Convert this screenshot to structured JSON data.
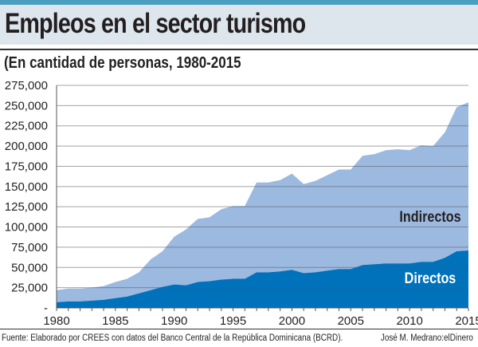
{
  "title": "Empleos en el sector turismo",
  "subtitle": "(En cantidad de personas, 1980-2015",
  "source": "Fuente: Elaborado por CREES con datos del Banco Central de la República Dominicana (BCRD).",
  "credit": "José M. Medrano:elDinero",
  "colors": {
    "accent_bar": "#4a9fc0",
    "title_bg": "#dde6ed",
    "directos": "#0071bb",
    "indirectos": "#9cb9e0"
  },
  "chart_data": {
    "type": "area",
    "stacked": true,
    "title": "Empleos en el sector turismo",
    "subtitle": "(En cantidad de personas, 1980-2015",
    "xlim": [
      1980,
      2015
    ],
    "ylim": [
      0,
      275000
    ],
    "grid": true,
    "x_ticks": [
      "1980",
      "1985",
      "1990",
      "1995",
      "2000",
      "2005",
      "2010",
      "2015"
    ],
    "y_ticks": [
      "-",
      "25,000",
      "50,000",
      "75,000",
      "100,000",
      "125,000",
      "150,000",
      "175,000",
      "200,000",
      "225,000",
      "250,000",
      "275,000"
    ],
    "x": [
      1980,
      1981,
      1982,
      1983,
      1984,
      1985,
      1986,
      1987,
      1988,
      1989,
      1990,
      1991,
      1992,
      1993,
      1994,
      1995,
      1996,
      1997,
      1998,
      1999,
      2000,
      2001,
      2002,
      2003,
      2004,
      2005,
      2006,
      2007,
      2008,
      2009,
      2010,
      2011,
      2012,
      2013,
      2014,
      2015
    ],
    "series": [
      {
        "name": "Directos",
        "values": [
          7000,
          8000,
          8000,
          9000,
          10000,
          12000,
          14000,
          18000,
          22000,
          26000,
          29000,
          28000,
          32000,
          33000,
          35000,
          36000,
          36000,
          44000,
          44000,
          45000,
          47000,
          43000,
          44000,
          46000,
          48000,
          48000,
          53000,
          54000,
          55000,
          55000,
          55000,
          57000,
          57000,
          62000,
          70000,
          71000
        ]
      },
      {
        "name": "Indirectos",
        "values": [
          15000,
          16000,
          16000,
          16000,
          17000,
          20000,
          22000,
          26000,
          38000,
          44000,
          59000,
          69000,
          78000,
          79000,
          87000,
          90000,
          90000,
          111000,
          111000,
          113000,
          119000,
          110000,
          113000,
          118000,
          123000,
          123000,
          135000,
          136000,
          140000,
          141000,
          140000,
          144000,
          143000,
          155000,
          178000,
          183000
        ]
      }
    ]
  }
}
